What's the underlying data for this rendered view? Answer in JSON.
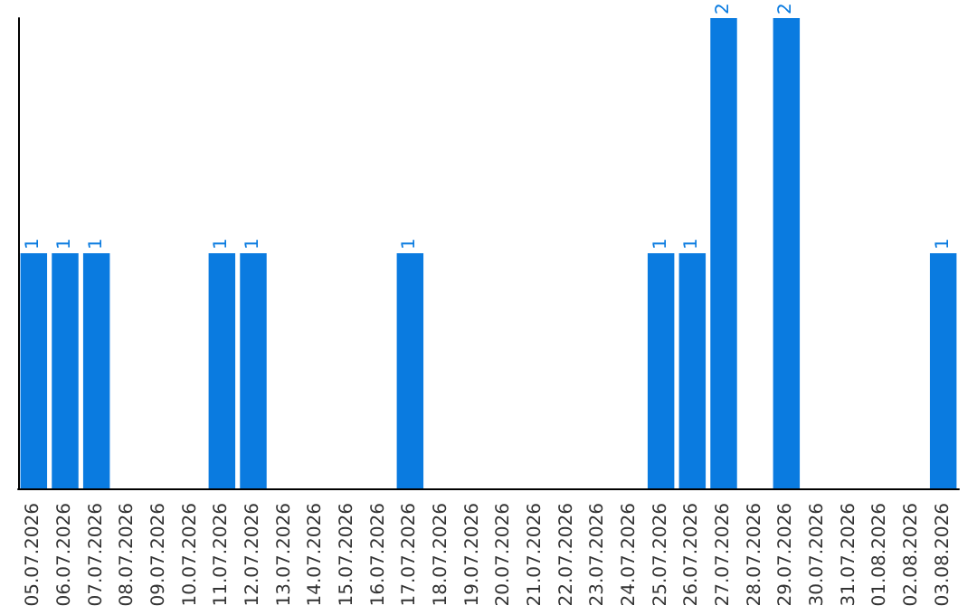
{
  "chart_data": {
    "type": "bar",
    "categories": [
      "05.07.2026",
      "06.07.2026",
      "07.07.2026",
      "08.07.2026",
      "09.07.2026",
      "10.07.2026",
      "11.07.2026",
      "12.07.2026",
      "13.07.2026",
      "14.07.2026",
      "15.07.2026",
      "16.07.2026",
      "17.07.2026",
      "18.07.2026",
      "19.07.2026",
      "20.07.2026",
      "21.07.2026",
      "22.07.2026",
      "23.07.2026",
      "24.07.2026",
      "25.07.2026",
      "26.07.2026",
      "27.07.2026",
      "28.07.2026",
      "29.07.2026",
      "30.07.2026",
      "31.07.2026",
      "01.08.2026",
      "02.08.2026",
      "03.08.2026"
    ],
    "values": [
      1,
      1,
      1,
      0,
      0,
      0,
      1,
      1,
      0,
      0,
      0,
      0,
      1,
      0,
      0,
      0,
      0,
      0,
      0,
      0,
      1,
      1,
      2,
      0,
      2,
      0,
      0,
      0,
      0,
      1
    ],
    "value_labels": [
      "1",
      "1",
      "1",
      null,
      null,
      null,
      "1",
      "1",
      null,
      null,
      null,
      null,
      "1",
      null,
      null,
      null,
      null,
      null,
      null,
      null,
      "1",
      "1",
      "2",
      null,
      "2",
      null,
      null,
      null,
      null,
      "1"
    ],
    "color": "#0a7be0",
    "tick_labels": "x"
  }
}
